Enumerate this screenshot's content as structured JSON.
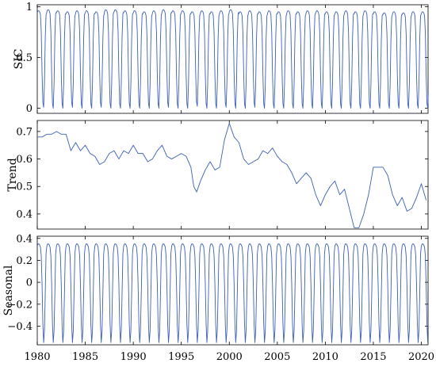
{
  "chart_data": [
    {
      "type": "line",
      "ylabel": "SIC",
      "xlim": [
        1980,
        2020.7
      ],
      "ylim": [
        -0.05,
        1.02
      ],
      "yticks": [
        0,
        0.5,
        1
      ],
      "ytick_labels": [
        "0",
        "0.5",
        "1"
      ],
      "xtick_labels_shown": false,
      "series": [
        {
          "color": "#3a5fb4",
          "sampling": "monthly, Jan 1980 - Sep 2020",
          "annual_cycle": "minimum ~0 around Aug-Sep, plateau ~0.93-0.98 from Dec to May",
          "annual_maximum": [
            0.96,
            0.97,
            0.96,
            0.95,
            0.96,
            0.96,
            0.95,
            0.97,
            0.97,
            0.96,
            0.96,
            0.95,
            0.96,
            0.97,
            0.96,
            0.96,
            0.95,
            0.96,
            0.95,
            0.96,
            0.97,
            0.95,
            0.96,
            0.95,
            0.96,
            0.95,
            0.96,
            0.95,
            0.96,
            0.96,
            0.95,
            0.95,
            0.96,
            0.95,
            0.96,
            0.95,
            0.94,
            0.95,
            0.94,
            0.95,
            0.95
          ],
          "annual_minimum": [
            0.01,
            0.0,
            0.0,
            0.01,
            0.0,
            0.0,
            0.01,
            0.0,
            0.0,
            0.0,
            0.0,
            0.0,
            0.0,
            0.01,
            0.0,
            0.0,
            0.02,
            0.0,
            0.0,
            0.01,
            0.0,
            0.0,
            0.01,
            0.0,
            0.0,
            0.0,
            0.0,
            0.0,
            0.0,
            0.0,
            0.0,
            0.0,
            0.0,
            0.0,
            0.0,
            0.0,
            0.0,
            0.0,
            0.0,
            0.0,
            0.0
          ]
        }
      ]
    },
    {
      "type": "line",
      "ylabel": "Trend",
      "xlim": [
        1980,
        2020.7
      ],
      "ylim": [
        0.345,
        0.74
      ],
      "yticks": [
        0.4,
        0.5,
        0.6,
        0.7
      ],
      "ytick_labels": [
        "0.4",
        "0.5",
        "0.6",
        "0.7"
      ],
      "xtick_labels_shown": false,
      "series": [
        {
          "color": "#3a5fb4",
          "x": [
            1980.0,
            1980.5,
            1981.0,
            1981.5,
            1982.0,
            1982.5,
            1983.0,
            1983.5,
            1984.0,
            1984.5,
            1985.0,
            1985.5,
            1986.0,
            1986.5,
            1987.0,
            1987.5,
            1988.0,
            1988.5,
            1989.0,
            1989.5,
            1990.0,
            1990.5,
            1991.0,
            1991.5,
            1992.0,
            1992.5,
            1993.0,
            1993.5,
            1994.0,
            1994.5,
            1995.0,
            1995.5,
            1996.0,
            1996.3,
            1996.6,
            1997.0,
            1997.5,
            1998.0,
            1998.5,
            1999.0,
            1999.5,
            2000.0,
            2000.5,
            2001.0,
            2001.5,
            2002.0,
            2002.5,
            2003.0,
            2003.5,
            2004.0,
            2004.5,
            2005.0,
            2005.5,
            2006.0,
            2006.5,
            2007.0,
            2007.5,
            2008.0,
            2008.5,
            2009.0,
            2009.5,
            2010.0,
            2010.5,
            2011.0,
            2011.5,
            2012.0,
            2012.5,
            2013.0,
            2013.5,
            2014.0,
            2014.5,
            2015.0,
            2015.5,
            2016.0,
            2016.5,
            2017.0,
            2017.5,
            2018.0,
            2018.5,
            2019.0,
            2019.5,
            2020.0,
            2020.5
          ],
          "y": [
            0.68,
            0.68,
            0.69,
            0.69,
            0.7,
            0.69,
            0.69,
            0.63,
            0.66,
            0.63,
            0.65,
            0.62,
            0.61,
            0.58,
            0.59,
            0.62,
            0.63,
            0.6,
            0.63,
            0.62,
            0.65,
            0.62,
            0.62,
            0.59,
            0.6,
            0.63,
            0.65,
            0.61,
            0.6,
            0.61,
            0.62,
            0.61,
            0.57,
            0.5,
            0.48,
            0.52,
            0.56,
            0.59,
            0.56,
            0.57,
            0.67,
            0.73,
            0.68,
            0.66,
            0.6,
            0.58,
            0.59,
            0.6,
            0.63,
            0.62,
            0.64,
            0.61,
            0.59,
            0.58,
            0.55,
            0.51,
            0.53,
            0.55,
            0.53,
            0.47,
            0.43,
            0.47,
            0.5,
            0.52,
            0.47,
            0.49,
            0.42,
            0.35,
            0.35,
            0.4,
            0.47,
            0.57,
            0.57,
            0.57,
            0.54,
            0.47,
            0.43,
            0.46,
            0.41,
            0.42,
            0.46,
            0.51,
            0.45
          ]
        }
      ]
    },
    {
      "type": "line",
      "ylabel": "Seasonal",
      "xlim": [
        1980,
        2020.7
      ],
      "ylim": [
        -0.57,
        0.42
      ],
      "yticks": [
        -0.4,
        -0.2,
        0,
        0.2,
        0.4
      ],
      "ytick_labels": [
        "−0.4",
        "−0.2",
        "0",
        "0.2",
        "0.4"
      ],
      "xticks": [
        1980,
        1985,
        1990,
        1995,
        2000,
        2005,
        2010,
        2015,
        2020
      ],
      "xtick_labels": [
        "1980",
        "1985",
        "1990",
        "1995",
        "2000",
        "2005",
        "2010",
        "2015",
        "2020"
      ],
      "series": [
        {
          "color": "#3a5fb4",
          "sampling": "monthly, Jan 1980 - Sep 2020, identical every year",
          "monthly_cycle": [
            0.33,
            0.35,
            0.35,
            0.34,
            0.32,
            0.24,
            -0.02,
            -0.38,
            -0.55,
            -0.44,
            -0.1,
            0.26
          ]
        }
      ]
    }
  ]
}
